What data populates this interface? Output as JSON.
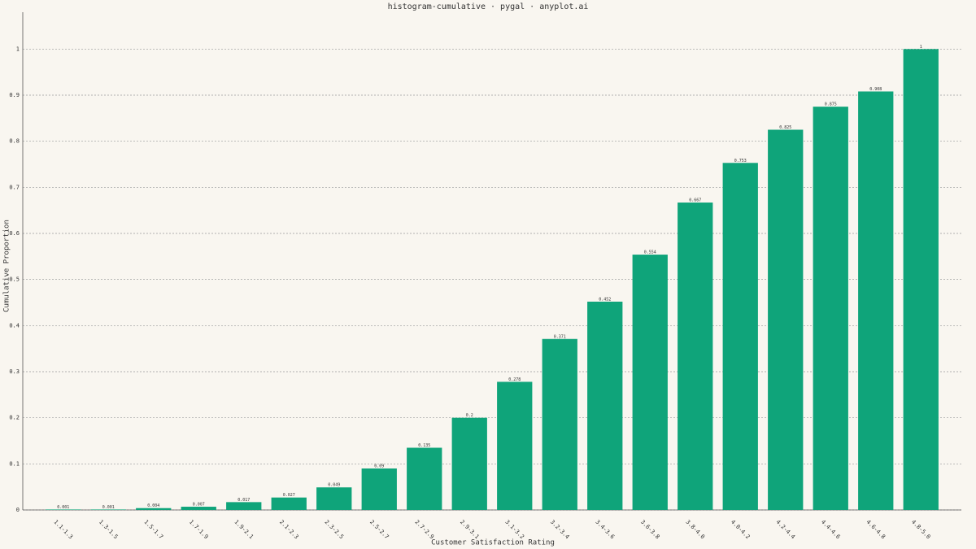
{
  "chart_data": {
    "type": "bar",
    "title": "histogram-cumulative · pygal · anyplot.ai",
    "x_label": "Customer Satisfaction Rating",
    "y_label": "Cumulative Proportion",
    "categories": [
      "1.1-1.3",
      "1.3-1.5",
      "1.5-1.7",
      "1.7-1.9",
      "1.9-2.1",
      "2.1-2.3",
      "2.3-2.5",
      "2.5-2.7",
      "2.7-2.9",
      "2.9-3.1",
      "3.1-3.2",
      "3.2-3.4",
      "3.4-3.6",
      "3.6-3.8",
      "3.8-4.0",
      "4.0-4.2",
      "4.2-4.4",
      "4.4-4.6",
      "4.6-4.8",
      "4.8-5.0"
    ],
    "values": [
      0.001,
      0.001,
      0.004,
      0.007,
      0.017,
      0.027,
      0.049,
      0.09,
      0.135,
      0.2,
      0.278,
      0.371,
      0.452,
      0.554,
      0.667,
      0.753,
      0.825,
      0.875,
      0.908,
      1
    ],
    "color": "#0fa47a",
    "ylim": [
      0,
      1.08
    ],
    "yticks": [
      0,
      0.1,
      0.2,
      0.3,
      0.4,
      0.5,
      0.6,
      0.7,
      0.8,
      0.9,
      1
    ],
    "grid": true
  }
}
